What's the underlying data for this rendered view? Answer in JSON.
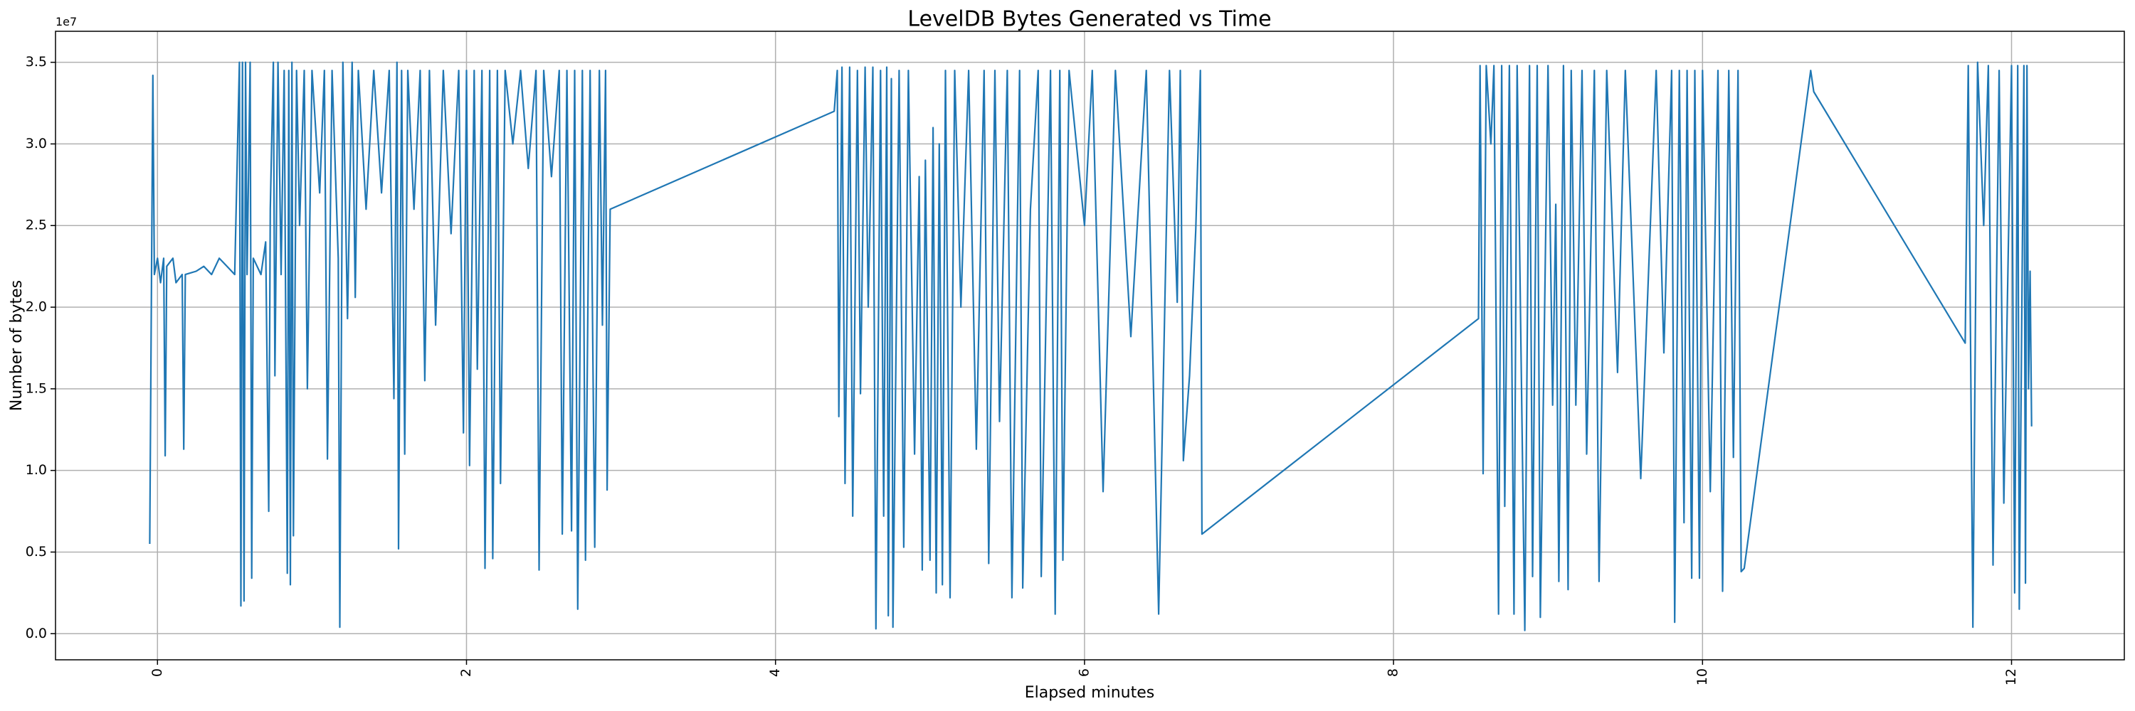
{
  "chart_data": {
    "type": "line",
    "title": "LevelDB Bytes Generated vs Time",
    "xlabel": "Elapsed minutes",
    "ylabel": "Number of bytes",
    "y_offset_label": "1e7",
    "color": "#1f77b4",
    "grid": true,
    "xlim": [
      -0.66,
      12.73
    ],
    "ylim": [
      -0.16,
      3.69
    ],
    "xticks": [
      0,
      2,
      4,
      6,
      8,
      10,
      12
    ],
    "yticks": [
      {
        "value": 0,
        "label": "0.0"
      },
      {
        "value": 0.5,
        "label": "0.5"
      },
      {
        "value": 1,
        "label": "1.0"
      },
      {
        "value": 1.5,
        "label": "1.5"
      },
      {
        "value": 2,
        "label": "2.0"
      },
      {
        "value": 2.5,
        "label": "2.5"
      },
      {
        "value": 3,
        "label": "3.0"
      },
      {
        "value": 3.5,
        "label": "3.5"
      }
    ],
    "x": [
      -0.05,
      -0.03,
      -0.02,
      0.0,
      0.02,
      0.04,
      0.05,
      0.06,
      0.1,
      0.12,
      0.16,
      0.17,
      0.18,
      0.25,
      0.3,
      0.35,
      0.4,
      0.45,
      0.5,
      0.53,
      0.54,
      0.55,
      0.56,
      0.57,
      0.58,
      0.6,
      0.61,
      0.62,
      0.67,
      0.7,
      0.72,
      0.73,
      0.75,
      0.76,
      0.78,
      0.8,
      0.82,
      0.84,
      0.85,
      0.86,
      0.87,
      0.88,
      0.9,
      0.92,
      0.95,
      0.97,
      1.0,
      1.05,
      1.08,
      1.1,
      1.13,
      1.17,
      1.18,
      1.2,
      1.23,
      1.26,
      1.28,
      1.3,
      1.35,
      1.4,
      1.45,
      1.5,
      1.53,
      1.55,
      1.56,
      1.58,
      1.6,
      1.62,
      1.66,
      1.7,
      1.73,
      1.76,
      1.8,
      1.85,
      1.9,
      1.95,
      1.98,
      2.0,
      2.02,
      2.05,
      2.07,
      2.1,
      2.12,
      2.15,
      2.17,
      2.2,
      2.22,
      2.25,
      2.3,
      2.35,
      2.4,
      2.45,
      2.47,
      2.5,
      2.55,
      2.6,
      2.62,
      2.65,
      2.68,
      2.7,
      2.72,
      2.75,
      2.77,
      2.8,
      2.83,
      2.86,
      2.88,
      2.9,
      2.91,
      2.93,
      4.38,
      4.4,
      4.41,
      4.43,
      4.45,
      4.48,
      4.5,
      4.53,
      4.55,
      4.58,
      4.6,
      4.63,
      4.65,
      4.68,
      4.7,
      4.72,
      4.73,
      4.75,
      4.76,
      4.8,
      4.83,
      4.86,
      4.9,
      4.93,
      4.95,
      4.97,
      5.0,
      5.02,
      5.04,
      5.06,
      5.08,
      5.1,
      5.13,
      5.16,
      5.2,
      5.25,
      5.3,
      5.35,
      5.38,
      5.42,
      5.45,
      5.5,
      5.53,
      5.58,
      5.6,
      5.65,
      5.7,
      5.72,
      5.78,
      5.81,
      5.84,
      5.86,
      5.9,
      6.0,
      6.05,
      6.12,
      6.2,
      6.3,
      6.4,
      6.48,
      6.55,
      6.6,
      6.62,
      6.64,
      6.68,
      6.72,
      6.75,
      6.76,
      8.55,
      8.56,
      8.58,
      8.6,
      8.63,
      8.65,
      8.68,
      8.7,
      8.72,
      8.75,
      8.78,
      8.8,
      8.85,
      8.88,
      8.9,
      8.93,
      8.95,
      9.0,
      9.03,
      9.05,
      9.07,
      9.1,
      9.13,
      9.15,
      9.18,
      9.22,
      9.25,
      9.3,
      9.33,
      9.38,
      9.45,
      9.5,
      9.6,
      9.7,
      9.75,
      9.8,
      9.82,
      9.85,
      9.88,
      9.9,
      9.93,
      9.95,
      9.98,
      10.0,
      10.05,
      10.1,
      10.13,
      10.17,
      10.2,
      10.23,
      10.25,
      10.27,
      10.7,
      10.72,
      11.7,
      11.72,
      11.75,
      11.78,
      11.82,
      11.85,
      11.88,
      11.92,
      11.95,
      12.0,
      12.02,
      12.04,
      12.05,
      12.08,
      12.09,
      12.1,
      12.11,
      12.12,
      12.13
    ],
    "values": [
      0.55,
      3.42,
      2.2,
      2.3,
      2.15,
      2.3,
      1.09,
      2.25,
      2.3,
      2.15,
      2.2,
      1.13,
      2.2,
      2.22,
      2.25,
      2.2,
      2.3,
      2.25,
      2.2,
      3.5,
      0.17,
      3.5,
      0.2,
      3.5,
      2.2,
      3.5,
      0.34,
      2.3,
      2.2,
      2.4,
      0.75,
      2.6,
      3.5,
      1.58,
      3.5,
      2.2,
      3.45,
      0.37,
      3.45,
      0.3,
      3.5,
      0.6,
      3.45,
      2.5,
      3.45,
      1.5,
      3.45,
      2.7,
      3.45,
      1.07,
      3.45,
      2.3,
      0.04,
      3.5,
      1.93,
      3.5,
      2.06,
      3.45,
      2.6,
      3.45,
      2.7,
      3.45,
      1.44,
      3.5,
      0.52,
      3.45,
      1.1,
      3.45,
      2.6,
      3.45,
      1.55,
      3.45,
      1.89,
      3.45,
      2.45,
      3.45,
      1.23,
      3.45,
      1.03,
      3.45,
      1.62,
      3.45,
      0.4,
      3.45,
      0.46,
      3.45,
      0.92,
      3.45,
      3.0,
      3.45,
      2.85,
      3.45,
      0.39,
      3.45,
      2.8,
      3.45,
      0.61,
      3.45,
      0.63,
      3.45,
      0.15,
      3.45,
      0.45,
      3.45,
      0.53,
      3.45,
      1.89,
      3.45,
      0.88,
      2.6,
      3.2,
      3.45,
      1.33,
      3.47,
      0.92,
      3.47,
      0.72,
      3.45,
      1.47,
      3.47,
      2.0,
      3.47,
      0.03,
      3.45,
      0.72,
      3.47,
      0.11,
      3.4,
      0.04,
      3.45,
      0.53,
      3.45,
      1.1,
      2.8,
      0.39,
      2.9,
      0.45,
      3.1,
      0.25,
      3.0,
      0.3,
      3.45,
      0.22,
      3.45,
      2.0,
      3.45,
      1.13,
      3.45,
      0.43,
      3.45,
      1.3,
      3.45,
      0.22,
      3.45,
      0.28,
      2.6,
      3.45,
      0.35,
      3.45,
      0.12,
      3.45,
      0.45,
      3.45,
      2.5,
      3.45,
      0.87,
      3.45,
      1.82,
      3.45,
      0.12,
      3.45,
      2.03,
      3.45,
      1.06,
      1.58,
      2.47,
      3.45,
      0.61,
      1.93,
      3.48,
      0.98,
      3.48,
      3.0,
      3.48,
      0.12,
      3.48,
      0.78,
      3.48,
      0.12,
      3.48,
      0.02,
      3.48,
      0.35,
      3.48,
      0.1,
      3.48,
      1.4,
      2.63,
      0.32,
      3.48,
      0.27,
      3.45,
      1.4,
      3.45,
      1.1,
      3.45,
      0.32,
      3.45,
      1.6,
      3.45,
      0.95,
      3.45,
      1.72,
      3.45,
      0.07,
      3.45,
      0.68,
      3.45,
      0.34,
      3.45,
      0.34,
      3.45,
      0.87,
      3.45,
      0.26,
      3.45,
      1.08,
      3.45,
      0.38,
      0.4,
      3.45,
      3.32,
      1.78,
      3.48,
      0.04,
      3.5,
      2.5,
      3.48,
      0.42,
      3.45,
      0.8,
      3.48,
      0.25,
      3.48,
      0.15,
      3.48,
      0.31,
      3.48,
      1.5,
      2.22,
      1.27
    ]
  }
}
